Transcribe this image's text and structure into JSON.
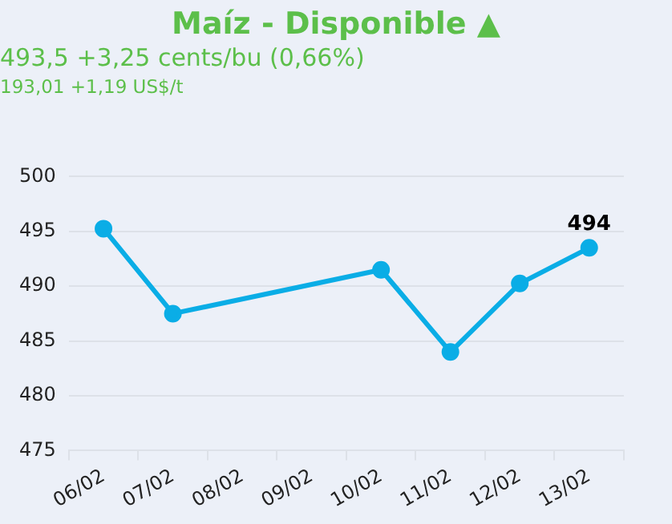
{
  "chart_data": {
    "type": "line",
    "title": "Maíz - Disponible ▲",
    "subtitle": "493,5 +3,25 cents/bu (0,66%)",
    "annotations": [
      "193,01 +1,19 US$/t"
    ],
    "categories": [
      "06/02",
      "07/02",
      "08/02",
      "09/02",
      "10/02",
      "11/02",
      "12/02",
      "13/02"
    ],
    "series": [
      {
        "color": "#0aade6",
        "values": [
          495.25,
          487.5,
          null,
          null,
          491.5,
          484,
          490.25,
          493.5
        ],
        "value_labels": [
          null,
          null,
          null,
          null,
          null,
          null,
          null,
          "494"
        ]
      }
    ],
    "ylim": [
      475,
      500
    ],
    "yticks": [
      475,
      480,
      485,
      490,
      495,
      500
    ],
    "grid": "y",
    "legend": false,
    "marker": "circle",
    "line_style": "solid"
  }
}
